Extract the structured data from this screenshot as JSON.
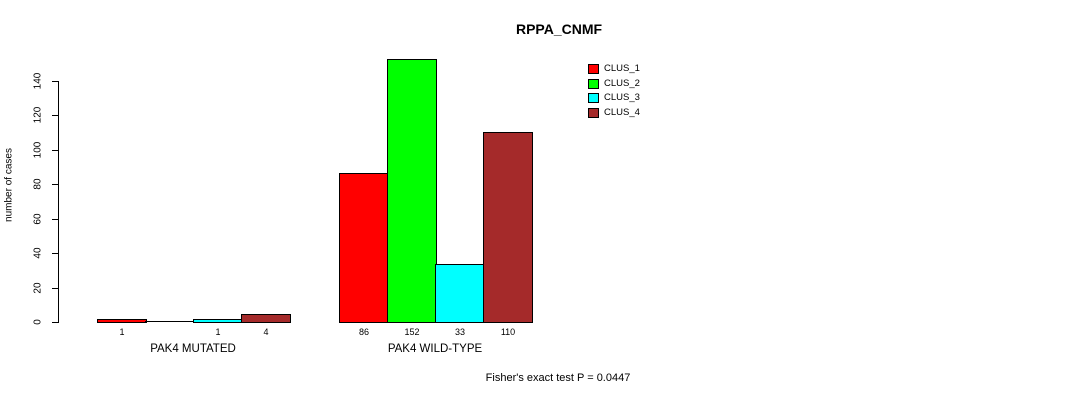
{
  "chart_data": {
    "type": "bar",
    "title": "RPPA_CNMF",
    "ylabel": "number of cases",
    "ylim": [
      0,
      140
    ],
    "yticks": [
      0,
      20,
      40,
      60,
      80,
      100,
      120,
      140
    ],
    "grid": false,
    "legend_position": "top-right",
    "series": [
      {
        "name": "CLUS_1",
        "color": "#FF0000"
      },
      {
        "name": "CLUS_2",
        "color": "#00FF00"
      },
      {
        "name": "CLUS_3",
        "color": "#00FFFF"
      },
      {
        "name": "CLUS_4",
        "color": "#A52A2A"
      }
    ],
    "categories": [
      "PAK4 MUTATED",
      "PAK4 WILD-TYPE"
    ],
    "groups": [
      {
        "label": "PAK4 MUTATED",
        "values": [
          1,
          0,
          1,
          4
        ],
        "count_labels": [
          "1",
          "",
          "1",
          "4"
        ]
      },
      {
        "label": "PAK4 WILD-TYPE",
        "values": [
          86,
          152,
          33,
          110
        ],
        "count_labels": [
          "86",
          "152",
          "33",
          "110"
        ]
      }
    ],
    "annotation": "Fisher's exact test P = 0.0447",
    "colors": {
      "axis": "#000000",
      "background": "#FFFFFF",
      "text": "#000000"
    }
  }
}
